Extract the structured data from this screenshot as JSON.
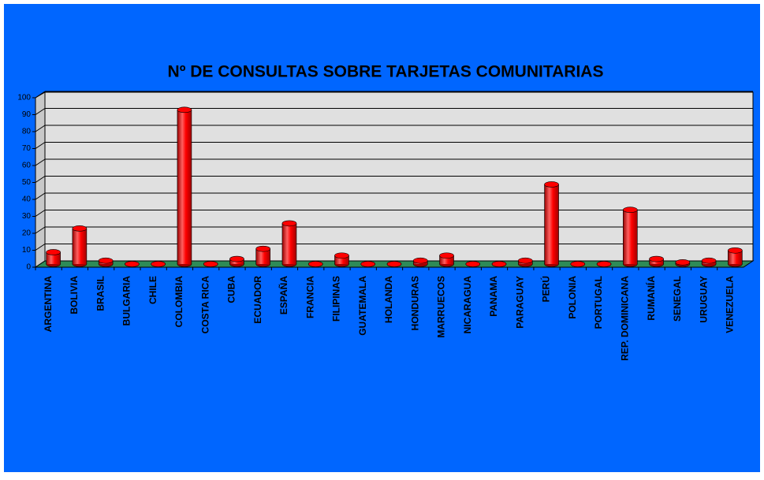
{
  "chart_data": {
    "type": "bar",
    "title": "Nº DE CONSULTAS SOBRE TARJETAS COMUNITARIAS",
    "categories": [
      "ARGENTINA",
      "BOLIVIA",
      "BRASIL",
      "BULGARIA",
      "CHILE",
      "COLOMBIA",
      "COSTA RICA",
      "CUBA",
      "ECUADOR",
      "ESPAÑA",
      "FRANCIA",
      "FILIPINAS",
      "GUATEMALA",
      "HOLANDA",
      "HONDURAS",
      "MARRUECOS",
      "NICARAGUA",
      "PANAMA",
      "PARAGUAY",
      "PERÚ",
      "POLONIA",
      "PORTUGAL",
      "REP. DOMINICANA",
      "RUMANÍA",
      "SENEGAL",
      "URUGUAY",
      "VENEZUELA"
    ],
    "values": [
      7,
      21,
      2,
      0,
      0,
      91,
      0,
      3,
      9,
      24,
      0,
      5,
      0,
      0,
      2,
      5,
      0,
      0,
      2,
      47,
      0,
      0,
      32,
      3,
      1,
      2,
      8
    ],
    "color": "#ff0000",
    "ylim": [
      0,
      100
    ],
    "yticks": [
      0,
      10,
      20,
      30,
      40,
      50,
      60,
      70,
      80,
      90,
      100
    ],
    "grid": true
  }
}
